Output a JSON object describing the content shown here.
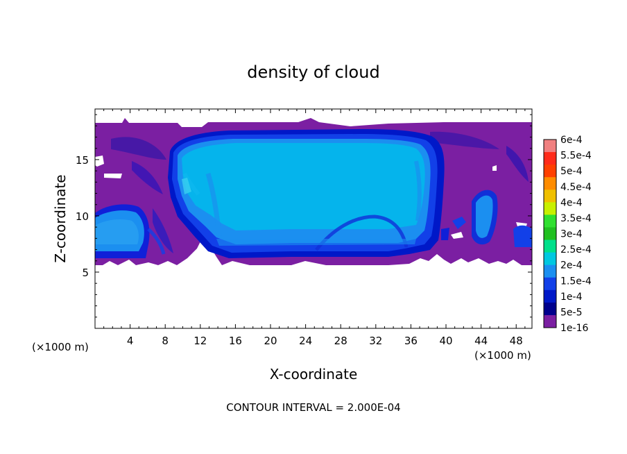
{
  "chart_data": {
    "type": "heatmap",
    "title": "density of cloud",
    "xlabel": "X-coordinate",
    "ylabel": "Z-coordinate",
    "x_unit": "(×1000 m)",
    "y_unit": "(×1000 m)",
    "xlim": [
      0,
      49.8
    ],
    "ylim": [
      0,
      19.5
    ],
    "xticks": [
      4,
      8,
      12,
      16,
      20,
      24,
      28,
      32,
      36,
      40,
      44,
      48
    ],
    "yticks": [
      5,
      10,
      15
    ],
    "footer": "CONTOUR INTERVAL = 2.000E-04",
    "colorbar": {
      "labels": [
        "6e-4",
        "5.5e-4",
        "5e-4",
        "4.5e-4",
        "4e-4",
        "3.5e-4",
        "3e-4",
        "2.5e-4",
        "2e-4",
        "1.5e-4",
        "1e-4",
        "5e-5",
        "1e-16"
      ],
      "colors": [
        "#f08080",
        "#ff2b1a",
        "#ff4000",
        "#ff8c00",
        "#f0c000",
        "#c8f000",
        "#30e030",
        "#20c020",
        "#00e08a",
        "#00c8e0",
        "#1b8ff0",
        "#1240e8",
        "#0018c8",
        "#00008c",
        "#7b1fa2"
      ]
    },
    "cloud_top": 18.6,
    "cloud_base": 5.9,
    "regions": [
      {
        "kind": "cloud_body",
        "x_range": [
          8.6,
          39.2
        ],
        "z_range": [
          6.5,
          18.0
        ],
        "density": "1.2e-4 to 1.5e-4"
      },
      {
        "kind": "left_cell",
        "x_range": [
          0,
          6.2
        ],
        "z_range": [
          6.3,
          10.7
        ],
        "density": "1e-4 to 1.2e-4"
      },
      {
        "kind": "right_cell",
        "x_range": [
          42.0,
          46.0
        ],
        "z_range": [
          7.5,
          12.5
        ],
        "density": "1e-4"
      }
    ]
  }
}
